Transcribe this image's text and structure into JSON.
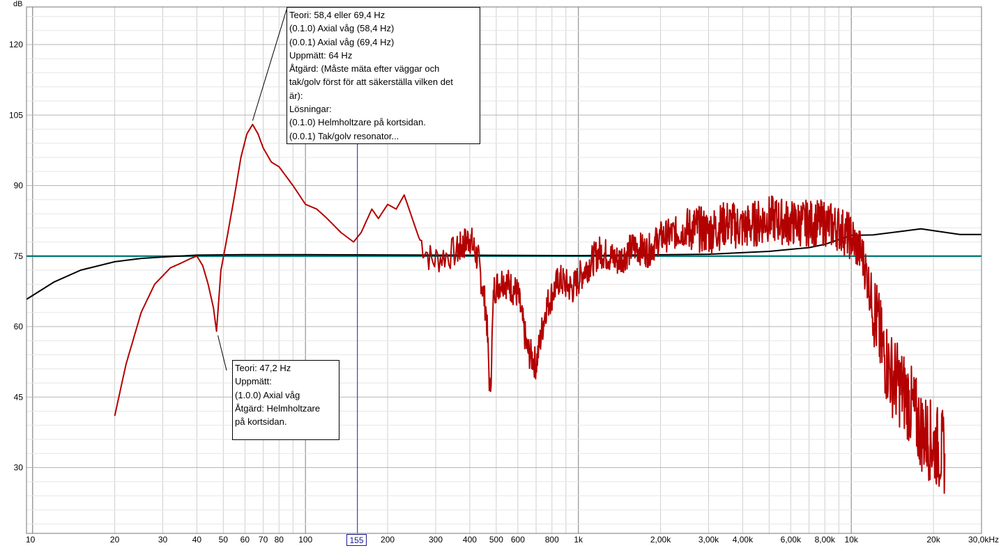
{
  "chart_data": {
    "type": "line",
    "ylabel": "dB",
    "xscale": "log",
    "xlim": [
      9.5,
      30000
    ],
    "ylim": [
      16,
      128
    ],
    "y_ticks": [
      30,
      45,
      60,
      75,
      90,
      105,
      120
    ],
    "x_ticks": [
      {
        "v": 10,
        "label": "10"
      },
      {
        "v": 20,
        "label": "20"
      },
      {
        "v": 30,
        "label": "30"
      },
      {
        "v": 40,
        "label": "40"
      },
      {
        "v": 50,
        "label": "50"
      },
      {
        "v": 60,
        "label": "60"
      },
      {
        "v": 70,
        "label": "70"
      },
      {
        "v": 80,
        "label": "80"
      },
      {
        "v": 100,
        "label": "100"
      },
      {
        "v": 200,
        "label": "200"
      },
      {
        "v": 300,
        "label": "300"
      },
      {
        "v": 400,
        "label": "400"
      },
      {
        "v": 500,
        "label": "500"
      },
      {
        "v": 600,
        "label": "600"
      },
      {
        "v": 800,
        "label": "800"
      },
      {
        "v": 1000,
        "label": "1k"
      },
      {
        "v": 2000,
        "label": "2,00k"
      },
      {
        "v": 3000,
        "label": "3,00k"
      },
      {
        "v": 4000,
        "label": "4,00k"
      },
      {
        "v": 6000,
        "label": "6,00k"
      },
      {
        "v": 8000,
        "label": "8,00k"
      },
      {
        "v": 10000,
        "label": "10k"
      },
      {
        "v": 20000,
        "label": "20k"
      },
      {
        "v": 30000,
        "label": "30,0kHz"
      }
    ],
    "cursor": {
      "x": 155,
      "label": "155"
    },
    "grid": true,
    "colors": {
      "measured": "#b30000",
      "target": "#000000",
      "reference": "#007b7b",
      "cursor": "#1a1a8c",
      "grid": "#cfcfcf"
    },
    "series": [
      {
        "key": "measured",
        "x": [
          20,
          22,
          25,
          28,
          32,
          35,
          38,
          40,
          42,
          44,
          46,
          47.2,
          49,
          52,
          55,
          58,
          61,
          64,
          67,
          70,
          75,
          80,
          90,
          100,
          110,
          120,
          135,
          150,
          160,
          175,
          185,
          200,
          215,
          230,
          260,
          290,
          320,
          360,
          400,
          430,
          460,
          475,
          490,
          530,
          600,
          650,
          700,
          760,
          850,
          950,
          1050,
          1200,
          1400,
          1600,
          1800,
          2000,
          2300,
          2700,
          3000,
          3500,
          4000,
          4500,
          5000,
          6000,
          7000,
          8000,
          9000,
          10000,
          11000,
          12000,
          13000,
          14000,
          16000,
          18000,
          20000,
          22000
        ],
        "y": [
          41,
          52,
          63,
          69,
          72.5,
          73.5,
          74.5,
          75,
          73,
          69,
          64,
          59,
          72,
          80,
          88,
          96,
          101,
          103,
          101,
          98,
          95,
          94,
          90,
          86,
          85,
          83,
          80,
          78,
          80,
          85,
          83,
          86,
          85,
          88,
          79,
          74,
          75,
          76,
          79,
          74,
          63,
          45,
          68,
          70,
          67,
          55,
          52,
          64,
          70,
          68,
          72,
          76,
          74,
          77,
          76,
          79,
          80,
          81,
          80,
          82,
          81,
          82,
          83,
          82,
          82,
          82,
          81,
          79,
          75,
          65,
          55,
          50,
          45,
          38,
          35,
          33
        ]
      },
      {
        "key": "target",
        "x": [
          9.5,
          12,
          15,
          20,
          25,
          30,
          40,
          60,
          100,
          300,
          1000,
          3000,
          5000,
          7000,
          8000,
          9000,
          10000,
          12000,
          15000,
          18000,
          20000,
          25000,
          30000
        ],
        "y": [
          65.8,
          69.5,
          72,
          73.8,
          74.5,
          74.8,
          75.2,
          75.3,
          75.3,
          75.2,
          75.1,
          75.4,
          76,
          76.8,
          77.5,
          78.5,
          79.4,
          79.5,
          80.2,
          80.8,
          80.4,
          79.6,
          79.6
        ]
      },
      {
        "key": "reference",
        "x": [
          9.5,
          30000
        ],
        "y": [
          75,
          75
        ]
      }
    ],
    "annotations": [
      {
        "key": "upper",
        "lines": [
          "Teori: 58,4 eller 69,4 Hz",
          "(0.1.0) Axial våg (58,4 Hz)",
          "(0.0.1) Axial våg (69,4 Hz)",
          "Uppmätt: 64 Hz",
          "Åtgärd: (Måste mäta efter väggar och",
          "tak/golv först för att säkerställa vilken det",
          "är):",
          "Lösningar:",
          "(0.1.0) Helmholtzare på kortsidan.",
          "(0.0.1) Tak/golv resonator..."
        ],
        "pointer": {
          "x": 64,
          "y": 103.2
        }
      },
      {
        "key": "lower",
        "lines": [
          "Teori: 47,2 Hz",
          "Uppmätt:",
          "(1.0.0) Axial våg",
          "Åtgärd: Helmholtzare",
          "på kortsidan."
        ],
        "pointer": {
          "x": 47.2,
          "y": 59
        }
      }
    ]
  }
}
